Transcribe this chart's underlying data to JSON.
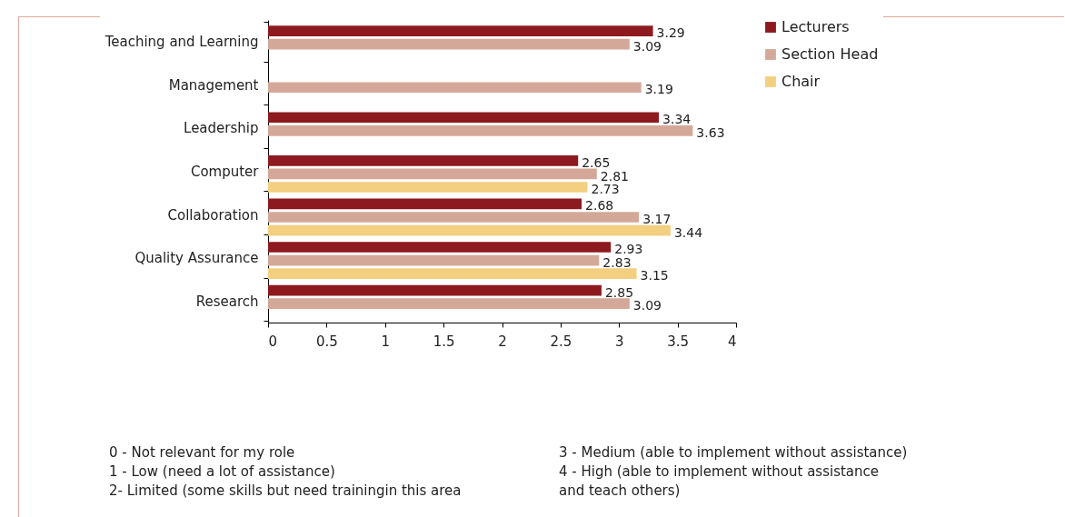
{
  "chart_data": {
    "type": "bar",
    "orientation": "horizontal",
    "categories": [
      "Teaching and Learning",
      "Management",
      "Leadership",
      "Computer",
      "Collaboration",
      "Quality Assurance",
      "Research"
    ],
    "series": [
      {
        "name": "Lecturers",
        "color": "#8c1a1f",
        "values": [
          3.29,
          null,
          3.34,
          2.65,
          2.68,
          2.93,
          2.85
        ]
      },
      {
        "name": "Section Head",
        "color": "#d4a899",
        "values": [
          3.09,
          3.19,
          3.63,
          2.81,
          3.17,
          2.83,
          3.09
        ]
      },
      {
        "name": "Chair",
        "color": "#f3cf80",
        "values": [
          null,
          null,
          null,
          2.73,
          3.44,
          3.15,
          null
        ]
      }
    ],
    "xlim": [
      0,
      4
    ],
    "xticks": [
      0,
      0.5,
      1,
      1.5,
      2,
      2.5,
      3,
      3.5,
      4
    ],
    "grid": false,
    "legend": "right",
    "data_labels": true,
    "annotations": [
      "0 - Not relevant for my role",
      "1 - Low (need a lot of assistance)",
      "2- Limited (some skills but need trainingin this area",
      "3 - Medium (able to implement without assistance)",
      "4 - High (able to implement without assistance\nand teach others)"
    ]
  }
}
